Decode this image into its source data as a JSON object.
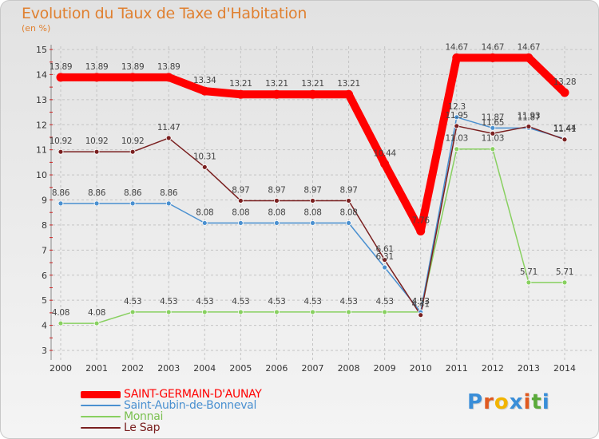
{
  "page": {
    "title": "Evolution du Taux de Taxe d'Habitation",
    "subtitle": "(en %)"
  },
  "chart_data": {
    "type": "line",
    "title": "Evolution du Taux de Taxe d'Habitation",
    "ylabel": "(en %)",
    "xlabel": "",
    "x": [
      "2000",
      "2001",
      "2002",
      "2003",
      "2004",
      "2005",
      "2006",
      "2007",
      "2008",
      "2009",
      "2010",
      "2011",
      "2012",
      "2013",
      "2014"
    ],
    "ylim": [
      3,
      15
    ],
    "yticks": [
      "3",
      "4",
      "5",
      "6",
      "7",
      "8",
      "9",
      "10",
      "11",
      "12",
      "13",
      "14",
      "15"
    ],
    "grid": true,
    "legend_position": "bottom-left",
    "series": [
      {
        "name": "SAINT-GERMAIN-D'AUNAY",
        "color": "#ff0000",
        "values": [
          13.89,
          13.89,
          13.89,
          13.89,
          13.34,
          13.21,
          13.21,
          13.21,
          13.21,
          10.44,
          7.76,
          14.67,
          14.67,
          14.67,
          13.28
        ],
        "labels": [
          "13.89",
          "13.89",
          "13.89",
          "13.89",
          "13.34",
          "13.21",
          "13.21",
          "13.21",
          "13.21",
          "10.44",
          "7.76",
          "14.67",
          "14.67",
          "14.67",
          "13.28"
        ]
      },
      {
        "name": "Saint-Aubin-de-Bonneval",
        "color": "#4a90d0",
        "values": [
          8.86,
          8.86,
          8.86,
          8.86,
          8.08,
          8.08,
          8.08,
          8.08,
          8.08,
          6.31,
          4.53,
          12.3,
          11.87,
          11.87,
          11.44
        ],
        "labels": [
          "8.86",
          "8.86",
          "8.86",
          "8.86",
          "8.08",
          "8.08",
          "8.08",
          "8.08",
          "8.08",
          "6.31",
          "4.53",
          "12.3",
          "11.87",
          "11.87",
          "11.44"
        ]
      },
      {
        "name": "Monnai",
        "color": "#88d060",
        "values": [
          4.08,
          4.08,
          4.53,
          4.53,
          4.53,
          4.53,
          4.53,
          4.53,
          4.53,
          4.53,
          4.53,
          11.03,
          11.03,
          5.71,
          5.71
        ],
        "labels": [
          "4.08",
          "4.08",
          "4.53",
          "4.53",
          "4.53",
          "4.53",
          "4.53",
          "4.53",
          "4.53",
          "4.53",
          "4.53",
          "11.03",
          "11.03",
          "5.71",
          "5.71"
        ]
      },
      {
        "name": "Le Sap",
        "color": "#7a2020",
        "values": [
          10.92,
          10.92,
          10.92,
          11.47,
          10.31,
          8.97,
          8.97,
          8.97,
          8.97,
          6.61,
          4.41,
          11.95,
          11.65,
          11.93,
          11.41
        ],
        "labels": [
          "10.92",
          "10.92",
          "10.92",
          "11.47",
          "10.31",
          "8.97",
          "8.97",
          "8.97",
          "8.97",
          "6.61",
          "4.41",
          "11.95",
          "11.65",
          "11.93",
          "11.41"
        ]
      }
    ]
  },
  "brand": {
    "letters": [
      {
        "ch": "P",
        "color": "#3a8ed8"
      },
      {
        "ch": "r",
        "color": "#e05a20"
      },
      {
        "ch": "o",
        "color": "#f2b400"
      },
      {
        "ch": "x",
        "color": "#3a8ed8"
      },
      {
        "ch": "i",
        "color": "#e05a20"
      },
      {
        "ch": "t",
        "color": "#5aaa3a"
      },
      {
        "ch": "i",
        "color": "#3a8ed8"
      }
    ]
  }
}
